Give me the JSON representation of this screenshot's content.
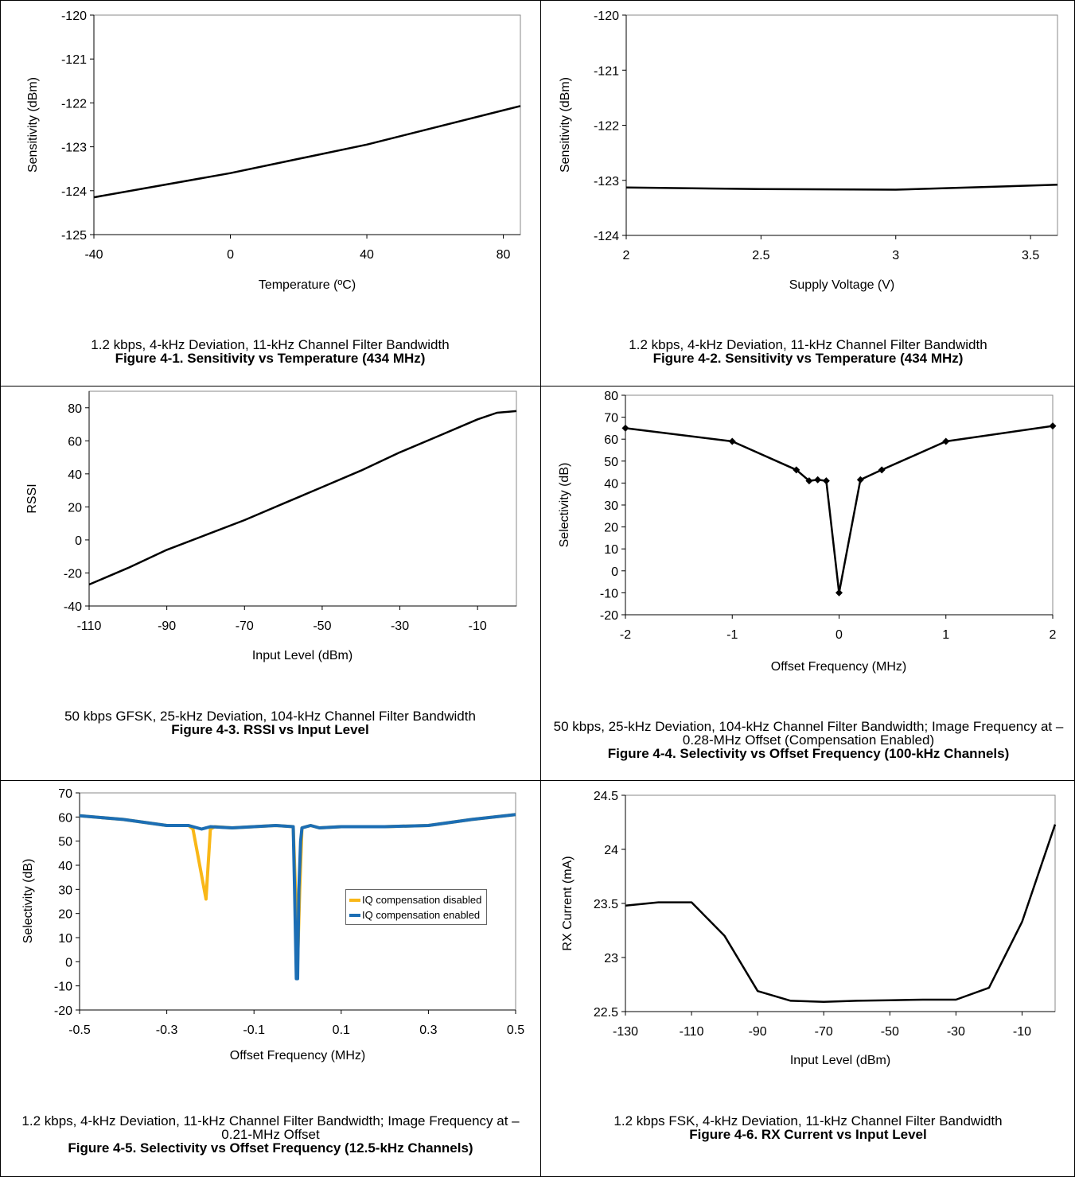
{
  "charts": {
    "c1": {
      "caption": "1.2 kbps, 4-kHz Deviation, 11-kHz Channel Filter Bandwidth",
      "figure": "Figure 4-1. Sensitivity vs Temperature (434 MHz)"
    },
    "c2": {
      "caption": "1.2 kbps, 4-kHz Deviation, 11-kHz Channel Filter Bandwidth",
      "figure": "Figure 4-2. Sensitivity vs Temperature (434 MHz)"
    },
    "c3": {
      "caption": "50 kbps GFSK, 25-kHz Deviation, 104-kHz Channel Filter Bandwidth",
      "figure": "Figure 4-3. RSSI vs Input Level"
    },
    "c4": {
      "caption": "50 kbps, 25-kHz Deviation, 104-kHz Channel Filter Bandwidth; Image Frequency at –0.28-MHz Offset (Compensation Enabled)",
      "figure": "Figure 4-4. Selectivity vs Offset Frequency (100-kHz Channels)"
    },
    "c5": {
      "caption": "1.2 kbps, 4-kHz Deviation, 11-kHz Channel Filter Bandwidth; Image Frequency at –0.21-MHz Offset",
      "figure": "Figure 4-5. Selectivity vs Offset Frequency (12.5-kHz Channels)"
    },
    "c6": {
      "caption": "1.2 kbps FSK, 4-kHz Deviation, 11-kHz Channel Filter Bandwidth",
      "figure": "Figure 4-6. RX Current vs Input Level"
    }
  },
  "chart_data": [
    {
      "id": "c1",
      "type": "line",
      "xlabel": "Temperature (ºC)",
      "ylabel": "Sensitivity (dBm)",
      "xlim": [
        -40,
        85
      ],
      "ylim": [
        -125,
        -120
      ],
      "xticks": [
        -40,
        0,
        40,
        80
      ],
      "yticks": [
        -125,
        -124,
        -123,
        -122,
        -121,
        -120
      ],
      "grid": false,
      "line_color": "#000000",
      "series": [
        {
          "x": [
            -40,
            0,
            40,
            85
          ],
          "y": [
            -124.15,
            -123.6,
            -122.95,
            -122.07
          ]
        }
      ]
    },
    {
      "id": "c2",
      "type": "line",
      "xlabel": "Supply Voltage (V)",
      "ylabel": "Sensitivity (dBm)",
      "xlim": [
        2,
        3.6
      ],
      "ylim": [
        -124,
        -120
      ],
      "xticks": [
        2,
        2.5,
        3,
        3.5
      ],
      "yticks": [
        -124,
        -123,
        -122,
        -121,
        -120
      ],
      "grid": false,
      "line_color": "#000000",
      "series": [
        {
          "x": [
            2,
            2.5,
            3,
            3.6
          ],
          "y": [
            -123.13,
            -123.16,
            -123.17,
            -123.08
          ]
        }
      ]
    },
    {
      "id": "c3",
      "type": "line",
      "xlabel": "Input Level (dBm)",
      "ylabel": "RSSI",
      "xlim": [
        -110,
        0
      ],
      "ylim": [
        -40,
        90
      ],
      "xticks": [
        -110,
        -90,
        -70,
        -50,
        -30,
        -10
      ],
      "yticks": [
        -40,
        -20,
        0,
        20,
        40,
        60,
        80
      ],
      "grid": false,
      "line_color": "#000000",
      "series": [
        {
          "x": [
            -110,
            -100,
            -90,
            -80,
            -70,
            -60,
            -50,
            -40,
            -30,
            -20,
            -10,
            -5,
            0
          ],
          "y": [
            -27,
            -17,
            -6,
            3,
            12,
            22,
            32,
            42,
            53,
            63,
            73,
            77,
            78
          ]
        }
      ]
    },
    {
      "id": "c4",
      "type": "line",
      "xlabel": "Offset Frequency (MHz)",
      "ylabel": "Selectivity (dB)",
      "xlim": [
        -2,
        2
      ],
      "ylim": [
        -20,
        80
      ],
      "xticks": [
        -2,
        -1,
        0,
        1,
        2
      ],
      "yticks": [
        -20,
        -10,
        0,
        10,
        20,
        30,
        40,
        50,
        60,
        70,
        80
      ],
      "grid": false,
      "line_color": "#000000",
      "markers": "diamond",
      "series": [
        {
          "x": [
            -2,
            -1,
            -0.4,
            -0.28,
            -0.2,
            -0.12,
            0,
            0.2,
            0.4,
            1,
            2
          ],
          "y": [
            65,
            59,
            46,
            41,
            41.5,
            41,
            -10,
            41.5,
            46,
            59,
            66
          ]
        }
      ]
    },
    {
      "id": "c5",
      "type": "line",
      "xlabel": "Offset Frequency (MHz)",
      "ylabel": "Selectivity (dB)",
      "xlim": [
        -0.5,
        0.5
      ],
      "ylim": [
        -20,
        70
      ],
      "xticks": [
        -0.5,
        -0.3,
        -0.1,
        0.1,
        0.3,
        0.5
      ],
      "yticks": [
        -20,
        -10,
        0,
        10,
        20,
        30,
        40,
        50,
        60,
        70
      ],
      "grid": false,
      "legend": "right",
      "series": [
        {
          "name": "IQ compensation disabled",
          "color": "#F9B717",
          "x": [
            -0.5,
            -0.4,
            -0.3,
            -0.25,
            -0.24,
            -0.21,
            -0.2,
            -0.19,
            -0.15,
            -0.1,
            -0.05,
            -0.01,
            -0.005,
            0,
            0.005,
            0.01,
            0.03,
            0.05,
            0.1,
            0.2,
            0.3,
            0.4,
            0.5
          ],
          "y": [
            60.5,
            59,
            56.5,
            56.5,
            55,
            26,
            55,
            56,
            55.5,
            56,
            56.5,
            56,
            30,
            0,
            30,
            55.5,
            56.5,
            55.5,
            56,
            56,
            56.5,
            59,
            61
          ]
        },
        {
          "name": "IQ compensation enabled",
          "color": "#1C6EB4",
          "x": [
            -0.5,
            -0.4,
            -0.3,
            -0.25,
            -0.22,
            -0.2,
            -0.15,
            -0.1,
            -0.05,
            -0.01,
            -0.007,
            -0.003,
            0,
            0.003,
            0.007,
            0.01,
            0.03,
            0.05,
            0.1,
            0.2,
            0.3,
            0.4,
            0.5
          ],
          "y": [
            60.5,
            59,
            56.5,
            56.5,
            55,
            56,
            55.5,
            56,
            56.5,
            56,
            30,
            -7,
            -7,
            30,
            50,
            55.5,
            56.5,
            55.5,
            56,
            56,
            56.5,
            59,
            61
          ]
        }
      ]
    },
    {
      "id": "c6",
      "type": "line",
      "xlabel": "Input Level (dBm)",
      "ylabel": "RX Current (mA)",
      "xlim": [
        -130,
        0
      ],
      "ylim": [
        22.5,
        24.5
      ],
      "xticks": [
        -130,
        -110,
        -90,
        -70,
        -50,
        -30,
        -10
      ],
      "yticks": [
        22.5,
        23,
        23.5,
        24,
        24.5
      ],
      "grid": false,
      "line_color": "#000000",
      "series": [
        {
          "x": [
            -130,
            -120,
            -110,
            -100,
            -90,
            -80,
            -70,
            -60,
            -50,
            -40,
            -30,
            -20,
            -10,
            0
          ],
          "y": [
            23.48,
            23.51,
            23.51,
            23.2,
            22.69,
            22.6,
            22.59,
            22.6,
            22.605,
            22.61,
            22.61,
            22.72,
            23.33,
            24.23
          ]
        }
      ]
    }
  ]
}
